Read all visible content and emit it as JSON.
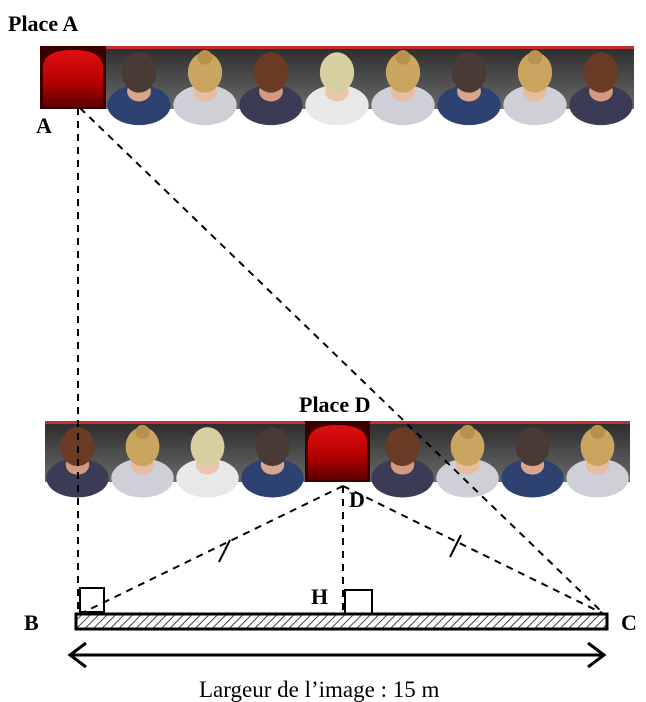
{
  "labels": {
    "place_a": "Place A",
    "place_d": "Place D",
    "point_a": "A",
    "point_b": "B",
    "point_c": "C",
    "point_d": "D",
    "point_h": "H"
  },
  "caption": "Largeur de l’image : 15 m",
  "rows": {
    "row_a": [
      "red-seat",
      "dark-hair",
      "blond-bun",
      "brown-hair",
      "light-blond",
      "blond-bun",
      "dark-hair",
      "blond-bun",
      "brown-hair"
    ],
    "row_d": [
      "brown-hair",
      "blond-bun",
      "light-blond",
      "dark-hair",
      "red-seat",
      "brown-hair",
      "blond-bun",
      "dark-hair",
      "blond-bun"
    ]
  },
  "colors": {
    "seat_red": "#b00000",
    "line": "#000000",
    "screen_hatch": "#555555"
  }
}
